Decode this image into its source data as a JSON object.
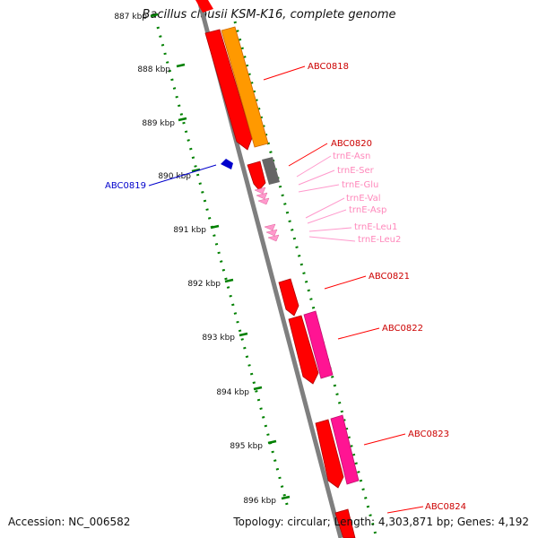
{
  "title": "Bacillus clausii KSM-K16, complete genome",
  "accession": "Accession: NC_006582",
  "topology": "Topology: circular; Length: 4,303,871 bp; Genes: 4,192",
  "ticks": [
    "887 kbp",
    "888 kbp",
    "889 kbp",
    "890 kbp",
    "891 kbp",
    "892 kbp",
    "893 kbp",
    "894 kbp",
    "895 kbp",
    "896 kbp"
  ],
  "genes": {
    "abc0818": "ABC0818",
    "abc0819": "ABC0819",
    "abc0820": "ABC0820",
    "abc0821": "ABC0821",
    "abc0822": "ABC0822",
    "abc0823": "ABC0823",
    "abc0824": "ABC0824"
  },
  "trnas": [
    "trnE-Asn",
    "trnE-Ser",
    "trnE-Glu",
    "trnE-Val",
    "trnE-Asp",
    "trnE-Leu1",
    "trnE-Leu2"
  ],
  "colors": {
    "cds_red": "#ff0000",
    "cds_orange": "#ff9900",
    "cds_pink": "#ff1493",
    "cds_gray": "#666666",
    "trna_pink": "#ff99cc",
    "reverse_blue": "#0000cc",
    "tick_green": "#008000",
    "backbone": "#7f7f7f"
  }
}
